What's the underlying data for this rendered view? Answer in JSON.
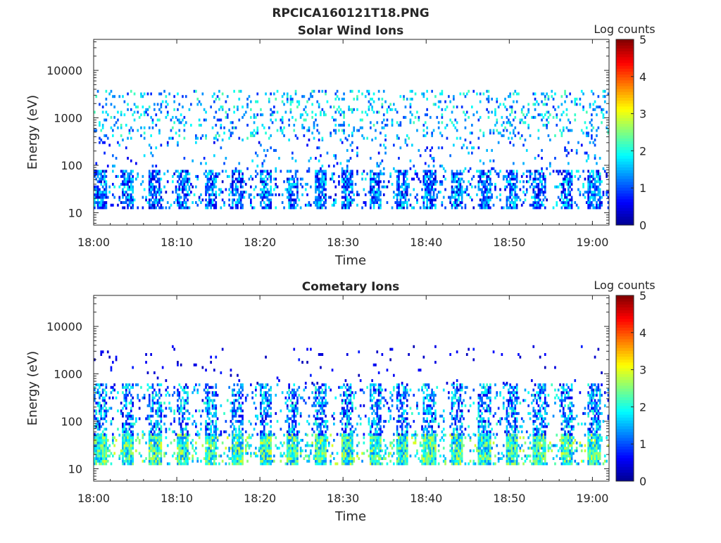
{
  "figure_title": "RPCICA160121T18.PNG",
  "colormap": [
    "#00008f",
    "#0000ff",
    "#0080ff",
    "#00ffff",
    "#80ff80",
    "#ffff00",
    "#ff8000",
    "#ff0000",
    "#800000"
  ],
  "chart_data": [
    {
      "type": "heatmap",
      "title": "Solar Wind Ions",
      "xlabel": "Time",
      "ylabel": "Energy (eV)",
      "x_ticks": [
        "18:00",
        "18:10",
        "18:20",
        "18:30",
        "18:40",
        "18:50",
        "19:00"
      ],
      "x_range_minutes": [
        0,
        62
      ],
      "y_ticks": [
        "10",
        "100",
        "1000",
        "10000"
      ],
      "y_tick_values": [
        10,
        100,
        1000,
        10000
      ],
      "y_range": [
        5.5,
        45000
      ],
      "y_scale": "log",
      "colorbar_label": "Log counts",
      "colorbar_ticks": [
        "0",
        "1",
        "2",
        "3",
        "4",
        "5"
      ],
      "colorbar_range": [
        0,
        5
      ],
      "features": [
        {
          "energy_range_eV": [
            12,
            80
          ],
          "minute_range": [
            0,
            62
          ],
          "log_counts_range": [
            0.3,
            2.0
          ],
          "occupancy": 0.55,
          "period_min": 3.3
        },
        {
          "energy_range_eV": [
            80,
            350
          ],
          "minute_range": [
            0,
            62
          ],
          "log_counts_range": [
            0.5,
            1.8
          ],
          "occupancy": 0.05,
          "period_min": 0
        },
        {
          "energy_range_eV": [
            350,
            3800
          ],
          "minute_range": [
            0,
            62
          ],
          "log_counts_range": [
            0.8,
            2.3
          ],
          "occupancy": 0.14,
          "period_min": 0
        }
      ]
    },
    {
      "type": "heatmap",
      "title": "Cometary Ions",
      "xlabel": "Time",
      "ylabel": "Energy (eV)",
      "x_ticks": [
        "18:00",
        "18:10",
        "18:20",
        "18:30",
        "18:40",
        "18:50",
        "19:00"
      ],
      "x_range_minutes": [
        0,
        62
      ],
      "y_ticks": [
        "10",
        "100",
        "1000",
        "10000"
      ],
      "y_tick_values": [
        10,
        100,
        1000,
        10000
      ],
      "y_range": [
        5.5,
        45000
      ],
      "y_scale": "log",
      "colorbar_label": "Log counts",
      "colorbar_ticks": [
        "0",
        "1",
        "2",
        "3",
        "4",
        "5"
      ],
      "colorbar_range": [
        0,
        5
      ],
      "features": [
        {
          "energy_range_eV": [
            12,
            50
          ],
          "minute_range": [
            0,
            62
          ],
          "log_counts_range": [
            1.2,
            3.0
          ],
          "occupancy": 0.72,
          "period_min": 3.3
        },
        {
          "energy_range_eV": [
            50,
            600
          ],
          "minute_range": [
            0,
            62
          ],
          "log_counts_range": [
            0.4,
            2.2
          ],
          "occupancy": 0.42,
          "period_min": 3.3
        },
        {
          "energy_range_eV": [
            600,
            3800
          ],
          "minute_range": [
            0,
            62
          ],
          "log_counts_range": [
            0.2,
            0.8
          ],
          "occupancy": 0.02,
          "period_min": 0
        }
      ]
    }
  ]
}
